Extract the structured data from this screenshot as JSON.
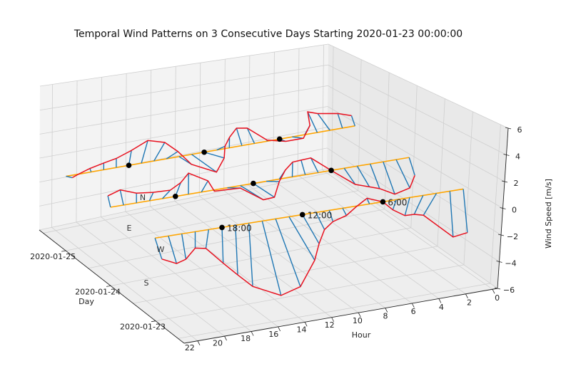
{
  "chart_data": {
    "type": "3d-line-quiver",
    "title": "Temporal Wind Patterns on 3 Consecutive Days Starting 2020-01-23 00:00:00",
    "xlabel": "Hour",
    "ylabel": "Day",
    "zlabel": "Wind Speed [m/s]",
    "xlim": [
      0,
      23
    ],
    "zlim": [
      -6,
      6
    ],
    "x_ticks": [
      "0",
      "2",
      "4",
      "6",
      "8",
      "10",
      "12",
      "14",
      "16",
      "18",
      "20",
      "22"
    ],
    "y_ticks": [
      "2020-01-23",
      "2020-01-24",
      "2020-01-25"
    ],
    "z_ticks": [
      "−6",
      "−4",
      "−2",
      "0",
      "2",
      "4",
      "6"
    ],
    "grid": true,
    "compass_labels": [
      "N",
      "E",
      "W",
      "S"
    ],
    "marker_hours": [
      6,
      12,
      18
    ],
    "marker_labels": [
      "6:00",
      "12:00",
      "18:00"
    ],
    "colors": {
      "baseline": "#ffa500",
      "arrows": "#1f77b4",
      "tips": "#e8101e",
      "markers": "#000000"
    },
    "series": [
      {
        "day": "2020-01-23",
        "hours": [
          0,
          1,
          2,
          3,
          4,
          5,
          6,
          7,
          8,
          9,
          10,
          11,
          12,
          13,
          14,
          15,
          16,
          17,
          18,
          19,
          20,
          21,
          22,
          23
        ],
        "arrow_dx_hours": [
          -0.5,
          -0.43,
          0.9,
          0.6,
          0.3,
          0.23,
          0,
          0.2,
          0,
          -0.3,
          -0.3,
          -0.68,
          -1.3,
          -2.0,
          -1.96,
          -1.5,
          -0.34,
          -0.2,
          -0.1,
          0.2,
          0,
          -0.3,
          -0.6,
          -0.5
        ],
        "speed_z": [
          -3.5,
          -3.65,
          -1.55,
          -1.36,
          -1.34,
          -0.74,
          0,
          0.47,
          -0.06,
          -0.6,
          -0.9,
          -1.4,
          -2.4,
          -3.6,
          -5.4,
          -5.8,
          -4.75,
          -3.7,
          -2.65,
          -1.35,
          -1.2,
          -1.9,
          -2.1,
          -1.6
        ]
      },
      {
        "day": "2020-01-24",
        "hours": [
          0,
          1,
          2,
          3,
          4,
          5,
          6,
          7,
          8,
          9,
          10,
          11,
          12,
          13,
          14,
          15,
          16,
          17,
          18,
          19,
          20,
          21,
          22,
          23
        ],
        "arrow_dx_hours": [
          -0.5,
          -1.15,
          -1.0,
          -0.8,
          -1.0,
          -0.9,
          0,
          0.6,
          0.35,
          0,
          -0.45,
          -1.0,
          -1.65,
          -1.8,
          -1.0,
          0,
          -0.5,
          0,
          -0.4,
          -0.6,
          -0.3,
          0,
          0.25,
          0.2
        ],
        "speed_z": [
          -1.6,
          -2.6,
          -2.9,
          -2.2,
          -1.9,
          -1.5,
          0,
          1.3,
          1.25,
          1.2,
          0.65,
          -0.2,
          -1.4,
          -1.45,
          -0.2,
          -0.1,
          0.8,
          1.65,
          1.0,
          0.55,
          0.6,
          0.75,
          1.2,
          0.9
        ]
      },
      {
        "day": "2020-01-25",
        "hours": [
          0,
          1,
          2,
          3,
          4,
          5,
          6,
          7,
          8,
          9,
          10,
          11,
          12,
          13,
          14,
          15,
          16,
          17,
          18,
          19,
          20,
          21,
          22,
          23
        ],
        "arrow_dx_hours": [
          0.3,
          0.4,
          1.0,
          0.8,
          -0.4,
          -0.9,
          -0.5,
          0,
          0.6,
          0.45,
          0,
          -0.65,
          -1.6,
          -2.0,
          -1.0,
          -0.9,
          -0.85,
          -0.5,
          -0.2,
          0,
          0,
          0.1,
          0,
          -0.5
        ],
        "speed_z": [
          1.0,
          1.4,
          1.7,
          2.0,
          0.75,
          -0.3,
          -0.3,
          0.1,
          1.45,
          1.6,
          0.9,
          0.2,
          -0.8,
          -1.9,
          -0.85,
          0.45,
          1.4,
          1.8,
          1.2,
          0.75,
          0.55,
          0.3,
          0,
          -0.2
        ]
      }
    ]
  }
}
